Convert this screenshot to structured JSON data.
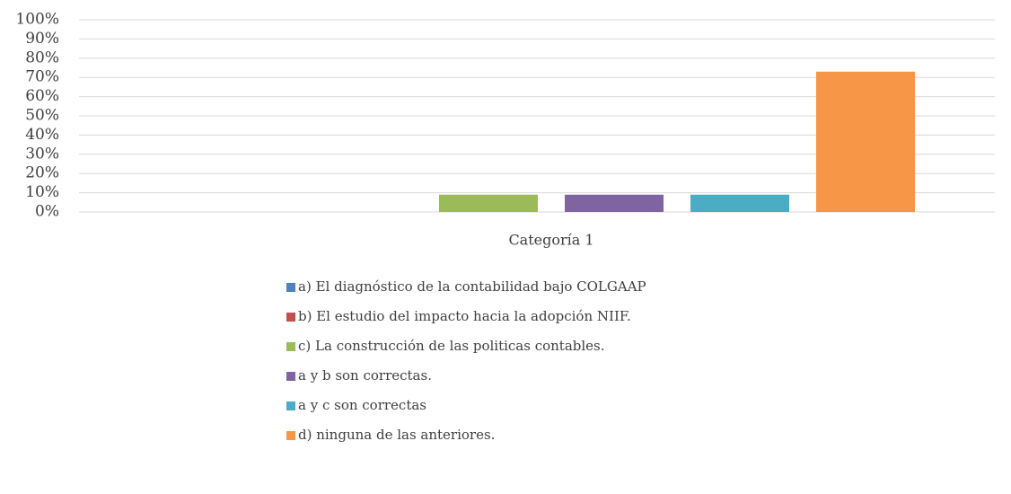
{
  "chart_data": {
    "type": "bar",
    "categories": [
      "Categoría 1"
    ],
    "series": [
      {
        "name": "a) El diagnóstico de la contabilidad bajo COLGAAP",
        "color": "#4f81bd",
        "values": [
          0
        ]
      },
      {
        "name": "b) El estudio del impacto hacia la adopción NIIF.",
        "color": "#c0504d",
        "values": [
          0
        ]
      },
      {
        "name": "c) La construcción de las politicas contables.",
        "color": "#9bbb59",
        "values": [
          9
        ]
      },
      {
        "name": "a y b son correctas.",
        "color": "#8064a2",
        "values": [
          9
        ]
      },
      {
        "name": "a y c son correctas",
        "color": "#4bacc6",
        "values": [
          9
        ]
      },
      {
        "name": "d) ninguna de las anteriores.",
        "color": "#f79646",
        "values": [
          73
        ]
      }
    ],
    "ylim": [
      0,
      100
    ],
    "yticks": [
      {
        "value": 0,
        "label": "0%"
      },
      {
        "value": 10,
        "label": "10%"
      },
      {
        "value": 20,
        "label": "20%"
      },
      {
        "value": 30,
        "label": "30%"
      },
      {
        "value": 40,
        "label": "40%"
      },
      {
        "value": 50,
        "label": "50%"
      },
      {
        "value": 60,
        "label": "60%"
      },
      {
        "value": 70,
        "label": "70%"
      },
      {
        "value": 80,
        "label": "80%"
      },
      {
        "value": 90,
        "label": "90%"
      },
      {
        "value": 100,
        "label": "100%"
      }
    ],
    "grid": true
  }
}
